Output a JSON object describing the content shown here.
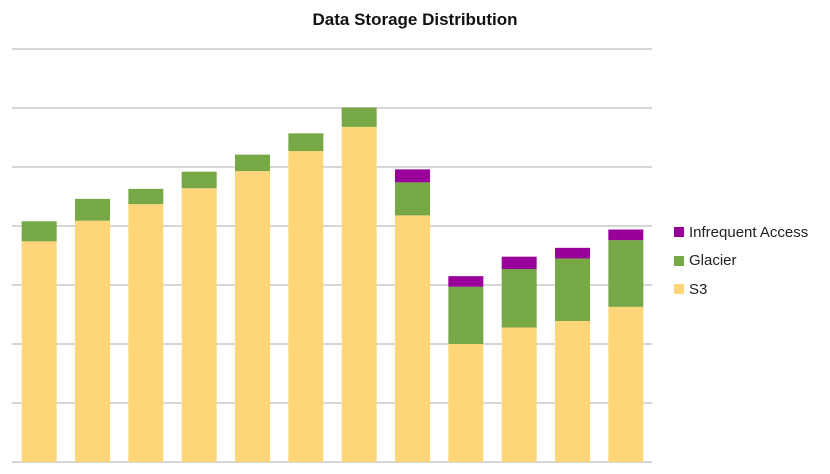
{
  "chart_data": {
    "type": "bar",
    "stacked": true,
    "title": "Data Storage Distribution",
    "xlabel": "",
    "ylabel": "",
    "categories": [
      "",
      "",
      "",
      "",
      "",
      "",
      "",
      "",
      "",
      "",
      "",
      ""
    ],
    "ylim": [
      0,
      7
    ],
    "grid": true,
    "legend_position": "right",
    "series": [
      {
        "name": "S3",
        "color": "#FFD57A",
        "values": [
          3.74,
          4.09,
          4.37,
          4.64,
          4.93,
          5.27,
          5.68,
          4.18,
          2.0,
          2.28,
          2.39,
          2.63
        ]
      },
      {
        "name": "Glacier",
        "color": "#77A846",
        "values": [
          0.34,
          0.37,
          0.26,
          0.28,
          0.28,
          0.3,
          0.33,
          0.56,
          0.97,
          0.99,
          1.06,
          1.13
        ]
      },
      {
        "name": "Infrequent Access",
        "color": "#990099",
        "values": [
          0,
          0,
          0,
          0,
          0,
          0,
          0,
          0.22,
          0.18,
          0.21,
          0.18,
          0.18
        ]
      }
    ]
  }
}
